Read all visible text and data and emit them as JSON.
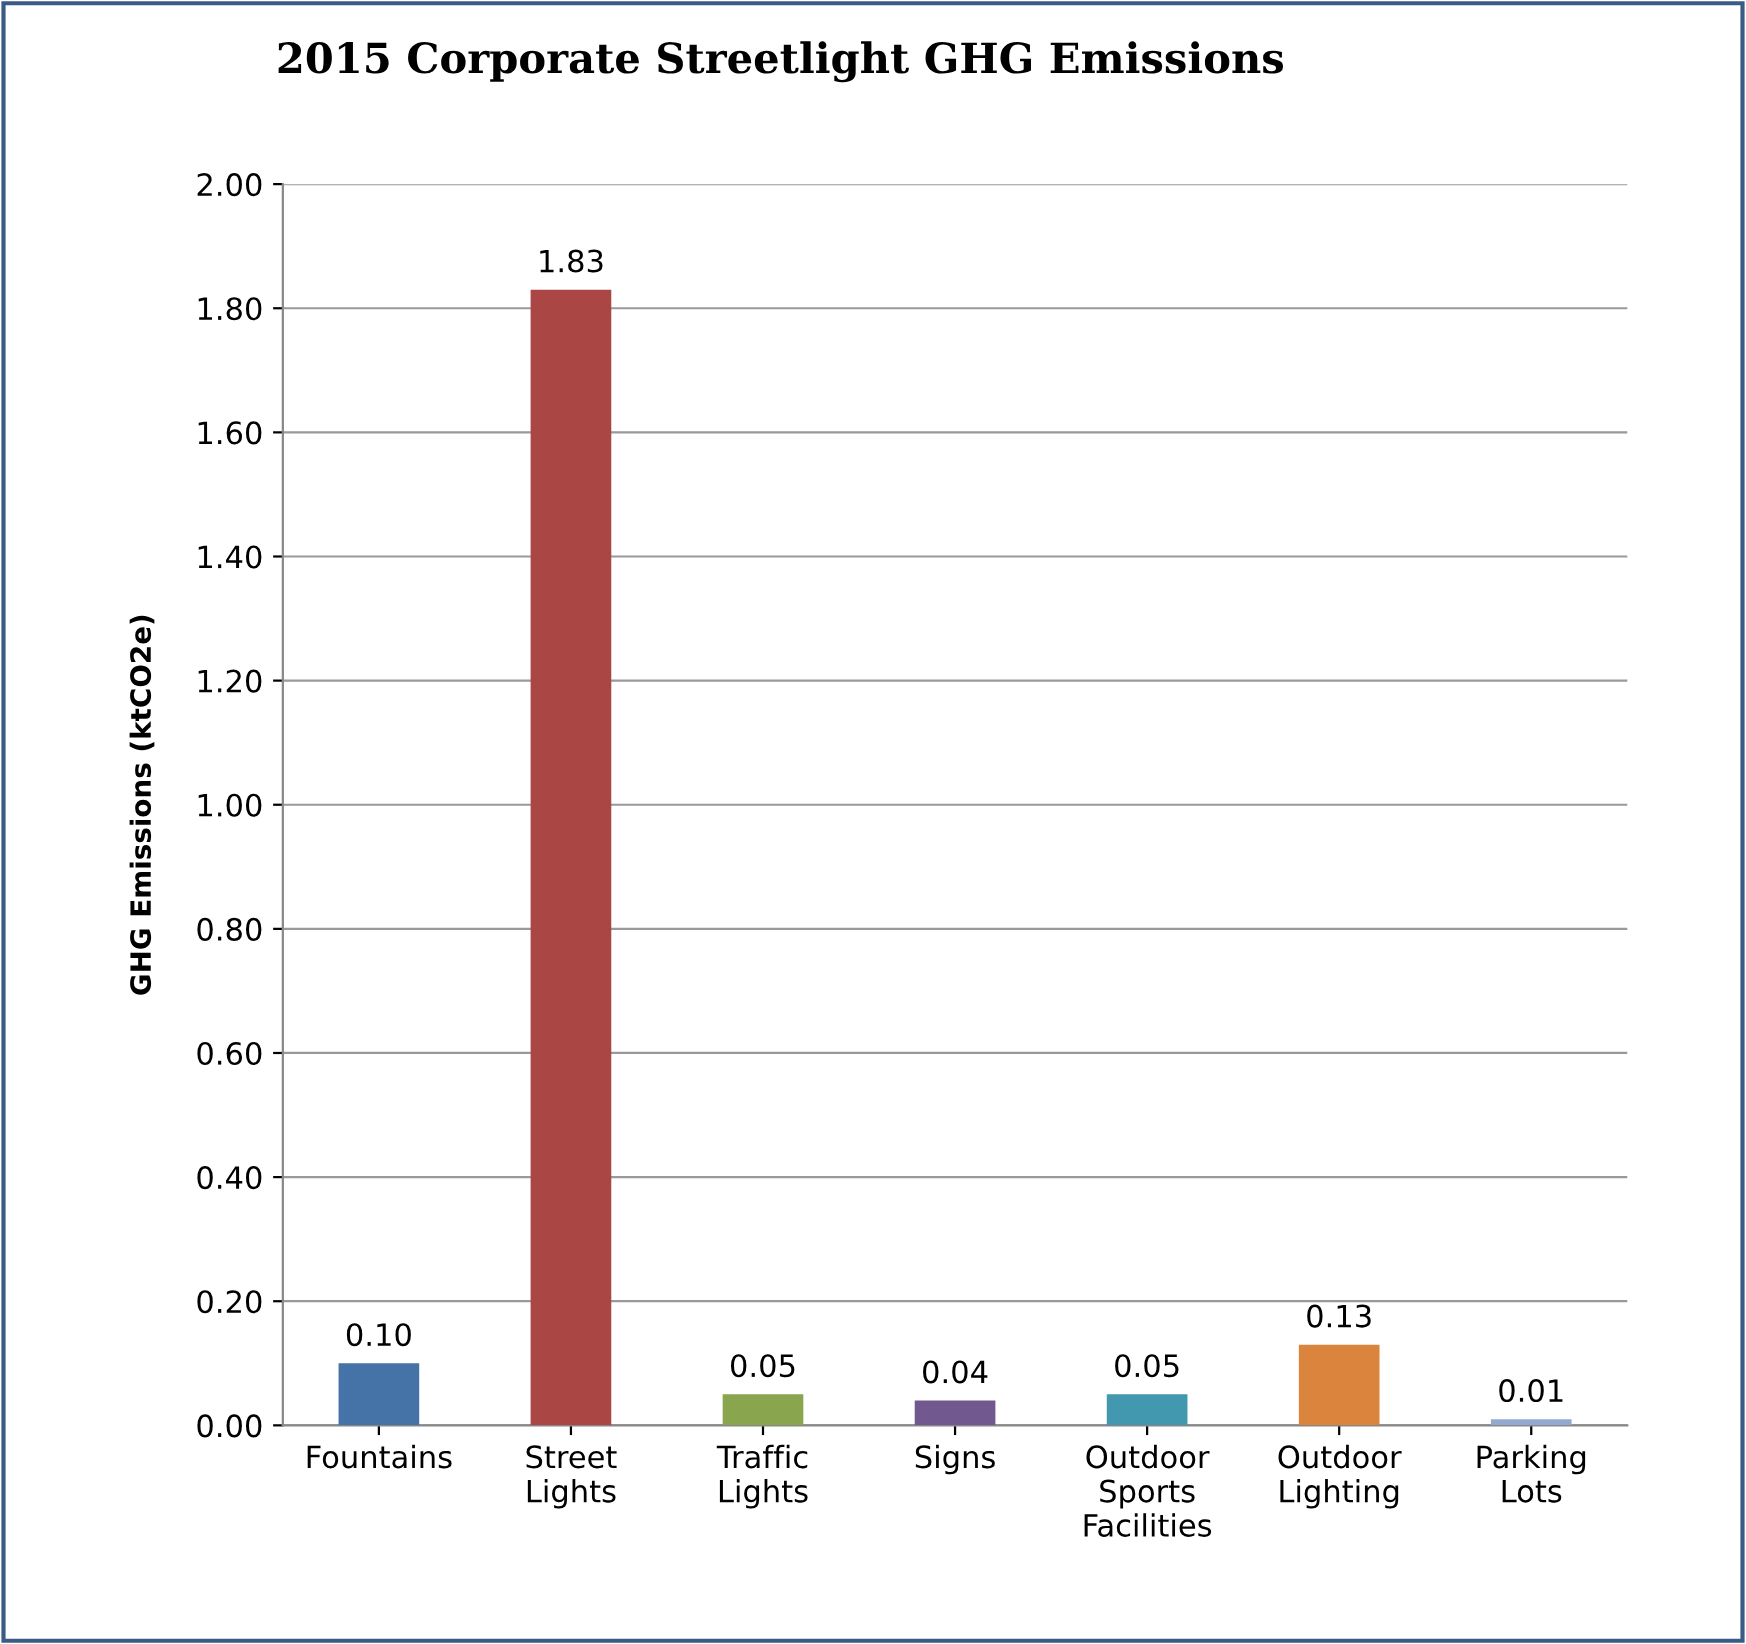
{
  "chart_data": {
    "type": "bar",
    "title": "2015 Corporate Streetlight GHG Emissions",
    "ylabel": "GHG Emissions (ktCO2e)",
    "categories": [
      "Fountains",
      "Street Lights",
      "Traffic Lights",
      "Signs",
      "Outdoor Sports Facilities",
      "Outdoor Lighting",
      "Parking Lots"
    ],
    "values": [
      0.1,
      1.83,
      0.05,
      0.04,
      0.05,
      0.13,
      0.01
    ],
    "colors": [
      "#4572a7",
      "#aa4643",
      "#89a54e",
      "#71588f",
      "#4198af",
      "#db843d",
      "#93a9cf"
    ],
    "value_labels": [
      "0.10",
      "1.83",
      "0.05",
      "0.04",
      "0.05",
      "0.13",
      "0.01"
    ],
    "ylim": [
      0,
      2
    ],
    "yticks": [
      {
        "value": 0,
        "label": "0.00"
      },
      {
        "value": 0.2,
        "label": "0.20"
      },
      {
        "value": 0.4,
        "label": "0.40"
      },
      {
        "value": 0.6,
        "label": "0.60"
      },
      {
        "value": 0.8,
        "label": "0.80"
      },
      {
        "value": 1.0,
        "label": "1.00"
      },
      {
        "value": 1.2,
        "label": "1.20"
      },
      {
        "value": 1.4,
        "label": "1.40"
      },
      {
        "value": 1.6,
        "label": "1.60"
      },
      {
        "value": 1.8,
        "label": "1.80"
      },
      {
        "value": 2.0,
        "label": "2.00"
      }
    ],
    "grid": "y",
    "legend": false
  }
}
